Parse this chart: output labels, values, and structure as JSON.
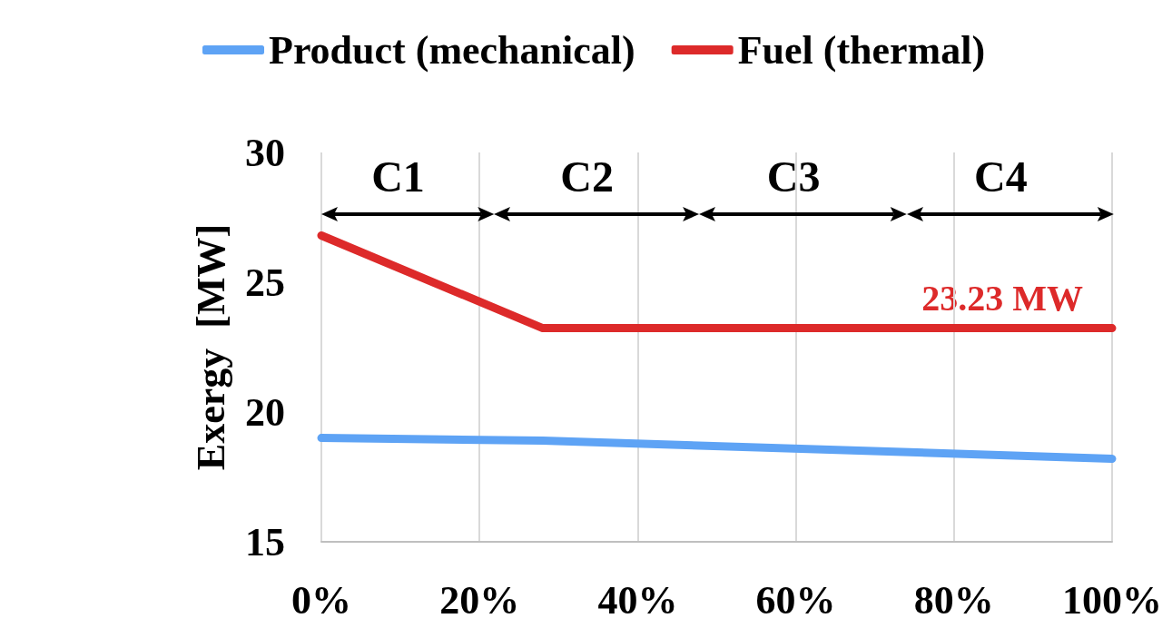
{
  "chart_data": {
    "type": "line",
    "ylabel": "Exergy  [MW]",
    "x": [
      0,
      28,
      100
    ],
    "series": [
      {
        "name": "Product (mechanical)",
        "color": "#5ea3f5",
        "values": [
          19.0,
          18.9,
          18.2
        ]
      },
      {
        "name": "Fuel (thermal)",
        "color": "#dd2a2a",
        "values": [
          26.8,
          23.23,
          23.23
        ]
      }
    ],
    "xlim": [
      0,
      100
    ],
    "xticks": [
      {
        "value": 0,
        "label": "0%"
      },
      {
        "value": 20,
        "label": "20%"
      },
      {
        "value": 40,
        "label": "40%"
      },
      {
        "value": 60,
        "label": "60%"
      },
      {
        "value": 80,
        "label": "80%"
      },
      {
        "value": 100,
        "label": "100%"
      }
    ],
    "ylim": [
      15,
      30
    ],
    "yticks": [
      15,
      20,
      25,
      30
    ],
    "annotations": [
      "C1",
      "C2",
      "C3",
      "C4",
      "23.23 MW"
    ],
    "grid": "x",
    "legend": "top",
    "line_style": "solid"
  }
}
